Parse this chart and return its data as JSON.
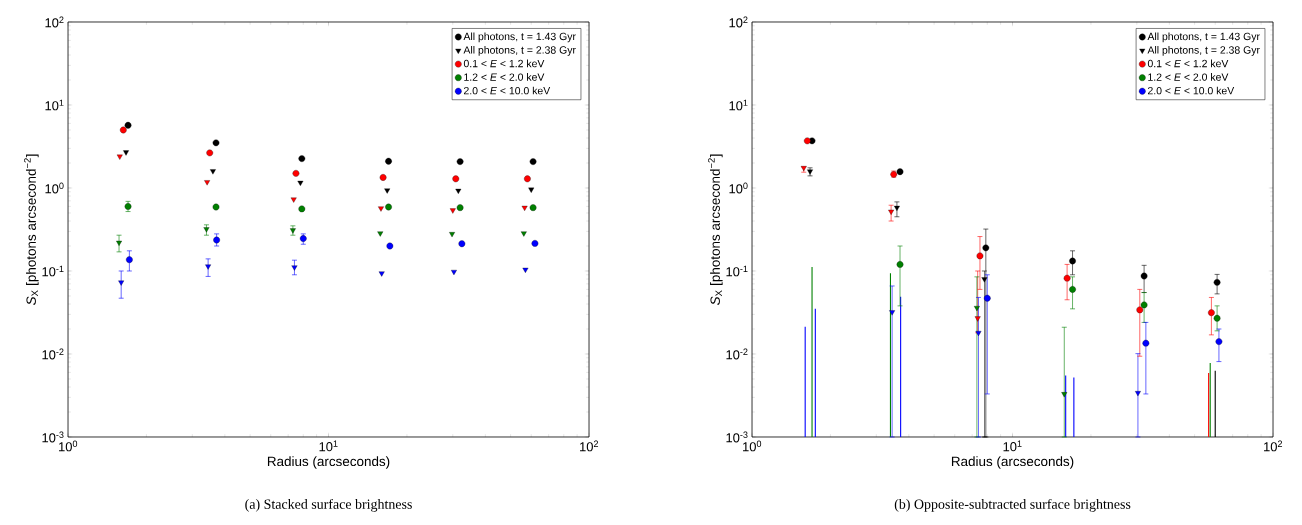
{
  "chart_data": [
    {
      "type": "scatter",
      "title": "(a)  Stacked surface brightness",
      "xlabel": "Radius (arcseconds)",
      "ylabel": "*S*$_{X}$ [photons arcsecond$^{−2}$]",
      "log": "xy",
      "xlim": [
        1,
        100
      ],
      "ylim": [
        0.001,
        100
      ],
      "xticks": [
        {
          "value": 1,
          "label": "10$^{0}$"
        },
        {
          "value": 10,
          "label": "10$^{1}$"
        },
        {
          "value": 100,
          "label": "10$^{2}$"
        }
      ],
      "yticks": [
        {
          "value": 0.001,
          "label": "10$^{-3}$"
        },
        {
          "value": 0.01,
          "label": "10$^{-2}$"
        },
        {
          "value": 0.1,
          "label": "10$^{-1}$"
        },
        {
          "value": 1,
          "label": "10$^{0}$"
        },
        {
          "value": 10,
          "label": "10$^{1}$"
        },
        {
          "value": 100,
          "label": "10$^{2}$"
        }
      ],
      "legend": "top right",
      "series": [
        {
          "name": "All photons, t = 1.43 Gyr",
          "color": "#000000",
          "marker": "circle",
          "x": [
            1.7,
            3.7,
            7.9,
            17,
            32,
            61
          ],
          "values": [
            5.7,
            3.5,
            2.26,
            2.1,
            2.08,
            2.08
          ]
        },
        {
          "name": "All photons, t = 2.38 Gyr",
          "color": "#000000",
          "marker": "triangle",
          "x": [
            1.67,
            3.6,
            7.8,
            16.8,
            31.5,
            60
          ],
          "values": [
            2.7,
            1.6,
            1.16,
            0.94,
            0.93,
            0.96
          ]
        },
        {
          "name": "0.1 < *E* < 1.2 keV",
          "color": "#ff0000",
          "marker": "circle",
          "x": [
            1.63,
            3.5,
            7.5,
            16.2,
            30.8,
            58
          ],
          "values": [
            5.0,
            2.65,
            1.5,
            1.34,
            1.29,
            1.29
          ]
        },
        {
          "name": "1.2 < *E* < 2.0 keV",
          "color": "#008000",
          "marker": "circle",
          "x": [
            1.7,
            3.7,
            7.9,
            17,
            32,
            61
          ],
          "values": [
            0.6,
            0.59,
            0.56,
            0.59,
            0.58,
            0.58
          ],
          "errors": [
            [
              0.52,
              0.69
            ],
            null,
            null,
            null,
            null,
            null
          ]
        },
        {
          "name": "2.0 < *E* < 10.0 keV",
          "color": "#0000ff",
          "marker": "circle",
          "x": [
            1.72,
            3.72,
            8.0,
            17.2,
            32.5,
            62
          ],
          "values": [
            0.137,
            0.236,
            0.246,
            0.2,
            0.213,
            0.215
          ],
          "errors": [
            [
              0.1,
              0.175
            ],
            [
              0.2,
              0.28
            ],
            [
              0.21,
              0.28
            ],
            null,
            null,
            null
          ]
        },
        {
          "color": "#ff0000",
          "marker": "triangle",
          "x": [
            1.58,
            3.42,
            7.35,
            15.9,
            30,
            56.6
          ],
          "values": [
            2.4,
            1.18,
            0.73,
            0.57,
            0.54,
            0.58
          ]
        },
        {
          "color": "#008000",
          "marker": "triangle",
          "x": [
            1.57,
            3.4,
            7.3,
            15.8,
            29.8,
            56.2
          ],
          "values": [
            0.22,
            0.32,
            0.31,
            0.285,
            0.28,
            0.285
          ],
          "errors": [
            [
              0.17,
              0.27
            ],
            [
              0.27,
              0.36
            ],
            [
              0.27,
              0.35
            ],
            null,
            null,
            null
          ]
        },
        {
          "color": "#0000ff",
          "marker": "triangle",
          "x": [
            1.6,
            3.45,
            7.4,
            16,
            30.3,
            57
          ],
          "values": [
            0.073,
            0.114,
            0.111,
            0.094,
            0.098,
            0.104
          ],
          "errors": [
            [
              0.047,
              0.1
            ],
            [
              0.086,
              0.14
            ],
            [
              0.09,
              0.135
            ],
            null,
            null,
            null
          ]
        }
      ]
    },
    {
      "type": "scatter",
      "title": "(b)  Opposite-subtracted surface brightness",
      "xlabel": "Radius (arcseconds)",
      "ylabel": "*S*$_{X}$ [photons arcsecond$^{−2}$]",
      "log": "xy",
      "xlim": [
        1,
        100
      ],
      "ylim": [
        0.001,
        100
      ],
      "xticks": [
        {
          "value": 1,
          "label": "10$^{0}$"
        },
        {
          "value": 10,
          "label": "10$^{1}$"
        },
        {
          "value": 100,
          "label": "10$^{2}$"
        }
      ],
      "yticks": [
        {
          "value": 0.001,
          "label": "10$^{-3}$"
        },
        {
          "value": 0.01,
          "label": "10$^{-2}$"
        },
        {
          "value": 0.1,
          "label": "10$^{-1}$"
        },
        {
          "value": 1,
          "label": "10$^{0}$"
        },
        {
          "value": 10,
          "label": "10$^{1}$"
        },
        {
          "value": 100,
          "label": "10$^{2}$"
        }
      ],
      "legend": "top right",
      "series": [
        {
          "name": "All photons, t = 1.43 Gyr",
          "color": "#000000",
          "marker": "circle",
          "x": [
            1.7,
            3.7,
            7.9,
            17,
            32,
            61
          ],
          "values": [
            3.7,
            1.57,
            0.19,
            0.132,
            0.087,
            0.073
          ],
          "errors": [
            null,
            null,
            [
              0.001,
              0.32
            ],
            [
              0.09,
              0.175
            ],
            [
              0.055,
              0.117
            ],
            [
              0.053,
              0.091
            ]
          ]
        },
        {
          "name": "All photons, t = 2.38 Gyr",
          "color": "#000000",
          "marker": "triangle",
          "x": [
            1.67,
            3.6,
            7.8,
            null,
            null,
            null
          ],
          "values": [
            1.59,
            0.58,
            0.08,
            null,
            null,
            null
          ],
          "errors": [
            [
              1.4,
              1.75
            ],
            [
              0.45,
              0.68
            ],
            [
              0.001,
              0.1
            ],
            null,
            null,
            null
          ]
        },
        {
          "name": "0.1 < *E* < 1.2 keV",
          "color": "#ff0000",
          "marker": "circle",
          "x": [
            1.63,
            3.5,
            7.5,
            16.2,
            30.8,
            58
          ],
          "values": [
            3.7,
            1.46,
            0.152,
            0.082,
            0.034,
            0.0315
          ],
          "errors": [
            null,
            [
              1.35,
              1.6
            ],
            [
              0.06,
              0.26
            ],
            [
              0.045,
              0.12
            ],
            [
              0.0094,
              0.06
            ],
            [
              0.017,
              0.048
            ]
          ]
        },
        {
          "name": "1.2 < *E* < 2.0 keV",
          "color": "#008000",
          "marker": "circle",
          "x": [
            null,
            3.7,
            null,
            17,
            32,
            61
          ],
          "values": [
            null,
            0.12,
            null,
            0.06,
            0.039,
            0.027
          ],
          "errors": [
            null,
            [
              0.038,
              0.2
            ],
            null,
            [
              0.035,
              0.085
            ],
            [
              0.024,
              0.055
            ],
            [
              0.019,
              0.038
            ]
          ]
        },
        {
          "name": "2.0 < *E* < 10.0 keV",
          "color": "#0000ff",
          "marker": "circle",
          "x": [
            null,
            null,
            8.0,
            null,
            32.5,
            62
          ],
          "values": [
            null,
            null,
            0.047,
            null,
            0.0135,
            0.0141
          ],
          "errors": [
            null,
            null,
            [
              0.0033,
              0.09
            ],
            null,
            [
              0.0033,
              0.024
            ],
            [
              0.0081,
              0.02
            ]
          ]
        },
        {
          "color": "#ff0000",
          "marker": "triangle",
          "x": [
            1.58,
            3.42,
            7.35,
            null,
            null,
            null
          ],
          "values": [
            1.75,
            0.52,
            0.027,
            null,
            null,
            null
          ],
          "errors": [
            [
              1.55,
              1.8
            ],
            [
              0.4,
              0.62
            ],
            [
              0.018,
              0.1
            ],
            null,
            null,
            null
          ]
        },
        {
          "color": "#008000",
          "marker": "triangle",
          "x": [
            null,
            null,
            7.3,
            15.8,
            null,
            null
          ],
          "values": [
            null,
            null,
            0.036,
            0.0033,
            null,
            null
          ],
          "errors": [
            null,
            null,
            [
              0.001,
              0.085
            ],
            [
              0.001,
              0.021
            ],
            null,
            null
          ]
        },
        {
          "color": "#0000ff",
          "marker": "triangle",
          "x": [
            null,
            3.45,
            7.4,
            null,
            30.3,
            null
          ],
          "values": [
            null,
            0.032,
            0.018,
            null,
            0.0034,
            null
          ],
          "errors": [
            null,
            [
              0.001,
              0.066
            ],
            [
              0.001,
              0.048
            ],
            null,
            [
              0.001,
              0.0101
            ],
            null
          ]
        },
        {
          "type": "line",
          "marker": "none",
          "color": "#008000",
          "x": [
            1.7,
            1.7
          ],
          "values": [
            0.001,
            0.112
          ]
        },
        {
          "type": "line",
          "marker": "none",
          "color": "#0000ff",
          "x": [
            1.75,
            1.75
          ],
          "values": [
            0.001,
            0.035
          ]
        },
        {
          "type": "line",
          "marker": "none",
          "color": "#0000ff",
          "x": [
            1.6,
            1.6
          ],
          "values": [
            0.001,
            0.0213
          ]
        },
        {
          "type": "line",
          "marker": "none",
          "color": "#008000",
          "x": [
            3.4,
            3.4
          ],
          "values": [
            0.001,
            0.094
          ]
        },
        {
          "type": "line",
          "marker": "none",
          "color": "#0000ff",
          "x": [
            3.72,
            3.72
          ],
          "values": [
            0.001,
            0.049
          ]
        },
        {
          "type": "line",
          "marker": "none",
          "color": "#0000ff",
          "x": [
            16,
            16
          ],
          "values": [
            0.001,
            0.0055
          ]
        },
        {
          "type": "line",
          "marker": "none",
          "color": "#0000ff",
          "x": [
            17.2,
            17.2
          ],
          "values": [
            0.001,
            0.0052
          ]
        },
        {
          "type": "line",
          "marker": "none",
          "color": "#ff0000",
          "x": [
            56.6,
            56.6
          ],
          "values": [
            0.001,
            0.0059
          ]
        },
        {
          "type": "line",
          "marker": "none",
          "color": "#008000",
          "x": [
            57.4,
            57.4
          ],
          "values": [
            0.001,
            0.0078
          ]
        },
        {
          "type": "line",
          "marker": "none",
          "color": "#000000",
          "x": [
            60,
            60
          ],
          "values": [
            0.001,
            0.0063
          ]
        }
      ]
    }
  ]
}
